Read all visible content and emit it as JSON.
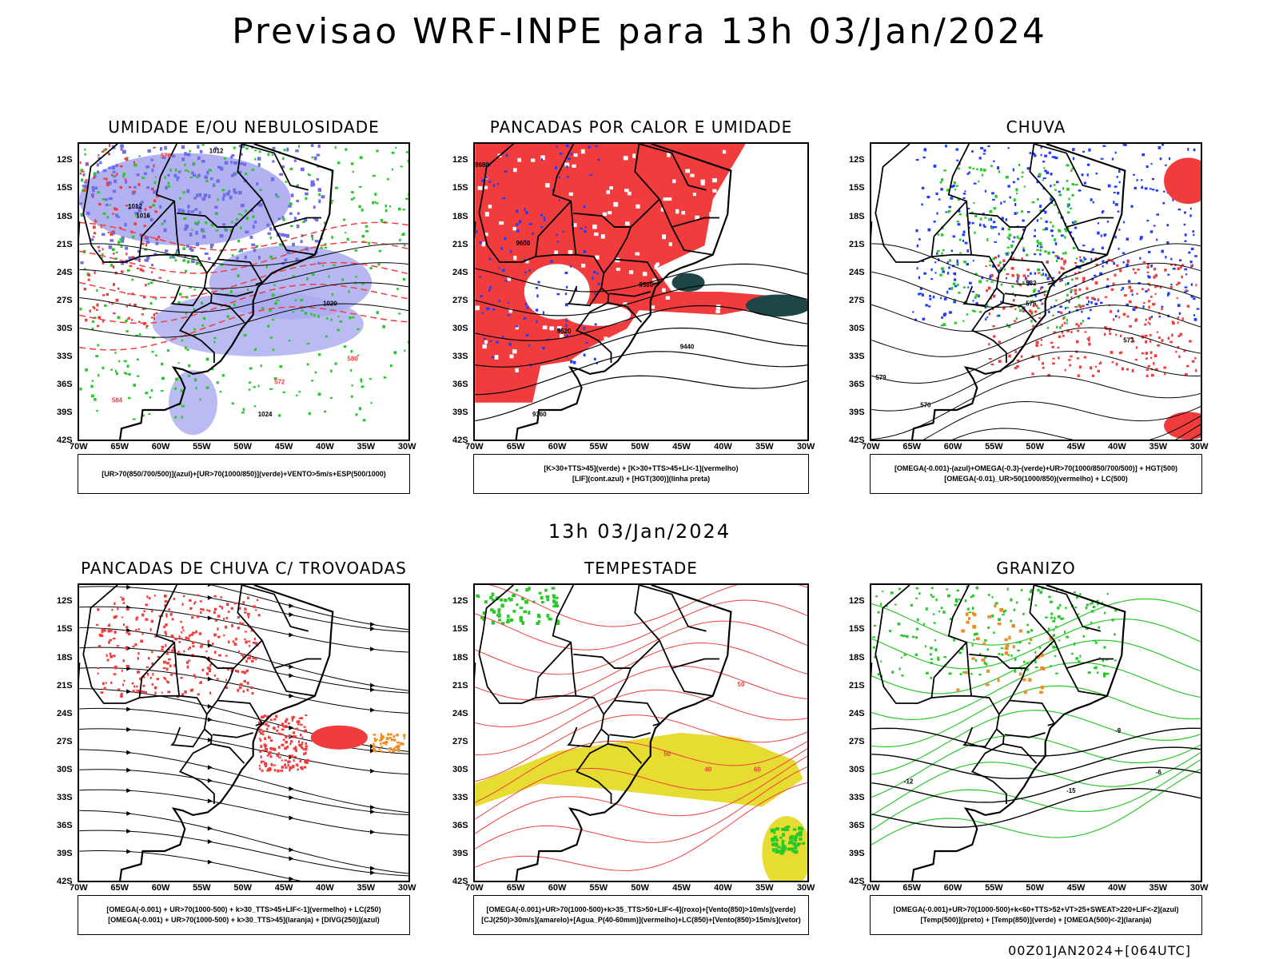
{
  "title": "Previsao WRF-INPE  para 13h 03/Jan/2024",
  "mid_time": "13h 03/Jan/2024",
  "footer": "00Z01JAN2024+[064UTC]",
  "lat_labels": [
    "12S",
    "15S",
    "18S",
    "21S",
    "24S",
    "27S",
    "30S",
    "33S",
    "36S",
    "39S",
    "42S"
  ],
  "lon_labels": [
    "70W",
    "65W",
    "60W",
    "55W",
    "50W",
    "45W",
    "40W",
    "35W",
    "30W"
  ],
  "panels": [
    {
      "title": "UMIDADE E/OU NEBULOSIDADE",
      "legend": [
        "[UR>70(850/700/500)](azul)+[UR>70(1000/850)](verde)+VENTO>5m/s+ESP(500/1000)"
      ]
    },
    {
      "title": "PANCADAS POR CALOR E UMIDADE",
      "legend": [
        "[K>30+TTS>45](verde) + [K>30+TTS>45+LI<-1](vermelho)",
        "[LIF](cont.azul) + [HGT(300)](linha preta)"
      ]
    },
    {
      "title": "CHUVA",
      "legend": [
        "[OMEGA(-0.001)-(azul)+OMEGA(-0.3)-(verde)+UR>70(1000/850/700/500)] + HGT(500)",
        "[OMEGA(-0.01)_UR>50(1000/850)(vermelho) + LC(500)"
      ]
    },
    {
      "title": "PANCADAS DE CHUVA C/ TROVOADAS",
      "legend": [
        "[OMEGA(-0.001) + UR>70(1000-500) + k>30_TTS>45+LIF<-1](vermelho) + LC(250)",
        "[OMEGA(-0.001) + UR>70(1000-500) + k>30_TTS>45](laranja) + [DIVG(250)](azul)"
      ]
    },
    {
      "title": "TEMPESTADE",
      "legend": [
        "[OMEGA(-0.001)+UR>70(1000-500)+k>35_TTS>50+LIF<-4](roxo)+[Vento(850)>10m/s](verde)",
        "[CJ(250)>30m/s](amarelo)+[Agua_P(40-60mm)](vermelho)+LC(850)+[Vento(850)>15m/s](vetor)"
      ]
    },
    {
      "title": "GRANIZO",
      "legend": [
        "[OMEGA(-0.001)+UR>70(1000-500)+k<60+TTS>52+VT>25+SWEAT>220+LIF<-2](azul)",
        "[Temp(500)](preto) + [Temp(850)](verde) + [OMEGA(500)<-2](laranja)"
      ]
    }
  ],
  "contour_labels": {
    "p1": [
      "1012",
      "1012",
      "1016",
      "1020",
      "1024",
      "576",
      "572",
      "580",
      "584"
    ],
    "p2": [
      "9680",
      "9600",
      "9520",
      "9440",
      "9360",
      "9580"
    ],
    "p3": [
      "582",
      "579",
      "576",
      "573",
      "570"
    ],
    "p5": [
      "50",
      "40",
      "60"
    ],
    "p6": [
      "-12",
      "-15",
      "-9",
      "-6"
    ]
  },
  "colors": {
    "red": "#f03c3c",
    "green": "#29c829",
    "blue": "#1e3cff",
    "lightblue": "#aaaaf0",
    "orange": "#f08c28",
    "yellow": "#e6dc32",
    "darkteal": "#1e4646"
  }
}
